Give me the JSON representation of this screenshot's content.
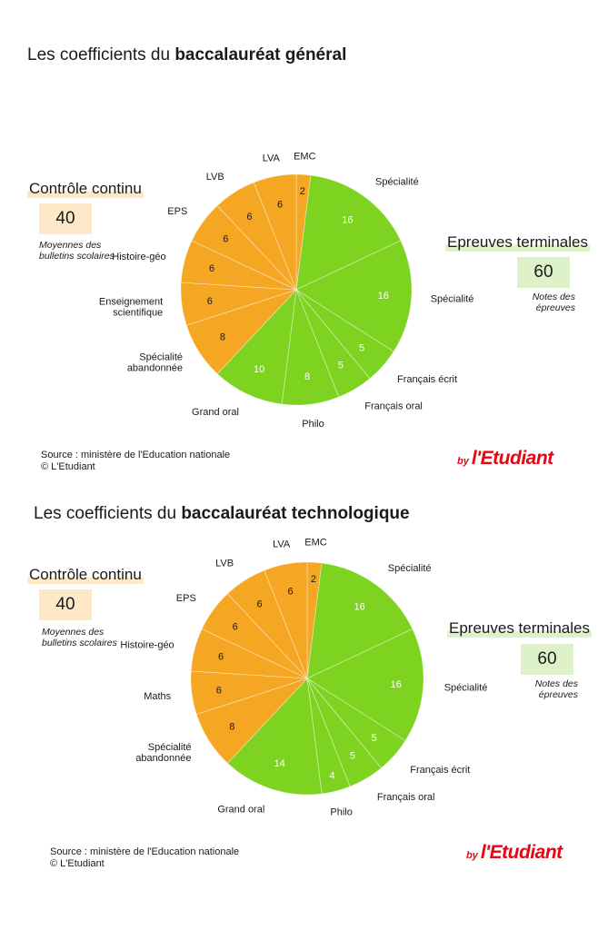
{
  "chart_data": [
    {
      "type": "pie",
      "title_prefix": "Les coefficients du ",
      "title_bold": "baccalauréat général",
      "colors": {
        "controle": "#f5a623",
        "terminales": "#7ed321"
      },
      "slices": [
        {
          "label": "EMC",
          "value": 2,
          "group": "controle"
        },
        {
          "label": "Spécialité",
          "value": 16,
          "group": "terminales"
        },
        {
          "label": "Spécialité",
          "value": 16,
          "group": "terminales"
        },
        {
          "label": "Français écrit",
          "value": 5,
          "group": "terminales"
        },
        {
          "label": "Français oral",
          "value": 5,
          "group": "terminales"
        },
        {
          "label": "Philo",
          "value": 8,
          "group": "terminales"
        },
        {
          "label": "Grand oral",
          "value": 10,
          "group": "terminales"
        },
        {
          "label": "Spécialité abandonnée",
          "value": 8,
          "group": "controle"
        },
        {
          "label": "Enseignement scientifique",
          "value": 6,
          "group": "controle"
        },
        {
          "label": "Histoire-géo",
          "value": 6,
          "group": "controle"
        },
        {
          "label": "EPS",
          "value": 6,
          "group": "controle"
        },
        {
          "label": "LVB",
          "value": 6,
          "group": "controle"
        },
        {
          "label": "LVA",
          "value": 6,
          "group": "controle"
        }
      ],
      "groups": {
        "controle": {
          "label": "Contrôle continu",
          "total": "40",
          "note": "Moyennes des bulletins scolaires"
        },
        "terminales": {
          "label": "Epreuves terminales",
          "total": "60",
          "note": "Notes des épreuves"
        }
      },
      "source_line1": "Source : ministère de l'Education nationale",
      "source_line2": "© L'Etudiant"
    },
    {
      "type": "pie",
      "title_prefix": "Les coefficients du ",
      "title_bold": "baccalauréat technologique",
      "colors": {
        "controle": "#f5a623",
        "terminales": "#7ed321"
      },
      "slices": [
        {
          "label": "EMC",
          "value": 2,
          "group": "controle"
        },
        {
          "label": "Spécialité",
          "value": 16,
          "group": "terminales"
        },
        {
          "label": "Spécialité",
          "value": 16,
          "group": "terminales"
        },
        {
          "label": "Français écrit",
          "value": 5,
          "group": "terminales"
        },
        {
          "label": "Français oral",
          "value": 5,
          "group": "terminales"
        },
        {
          "label": "Philo",
          "value": 4,
          "group": "terminales"
        },
        {
          "label": "Grand oral",
          "value": 14,
          "group": "terminales"
        },
        {
          "label": "Spécialité abandonnée",
          "value": 8,
          "group": "controle"
        },
        {
          "label": "Maths",
          "value": 6,
          "group": "controle"
        },
        {
          "label": "Histoire-géo",
          "value": 6,
          "group": "controle"
        },
        {
          "label": "EPS",
          "value": 6,
          "group": "controle"
        },
        {
          "label": "LVB",
          "value": 6,
          "group": "controle"
        },
        {
          "label": "LVA",
          "value": 6,
          "group": "controle"
        }
      ],
      "groups": {
        "controle": {
          "label": "Contrôle continu",
          "total": "40",
          "note": "Moyennes des bulletins scolaires"
        },
        "terminales": {
          "label": "Epreuves terminales",
          "total": "60",
          "note": "Notes des épreuves"
        }
      },
      "source_line1": "Source : ministère de l'Education nationale",
      "source_line2": "© L'Etudiant"
    }
  ],
  "brand": {
    "by": "by",
    "name": "l'Etudiant"
  }
}
